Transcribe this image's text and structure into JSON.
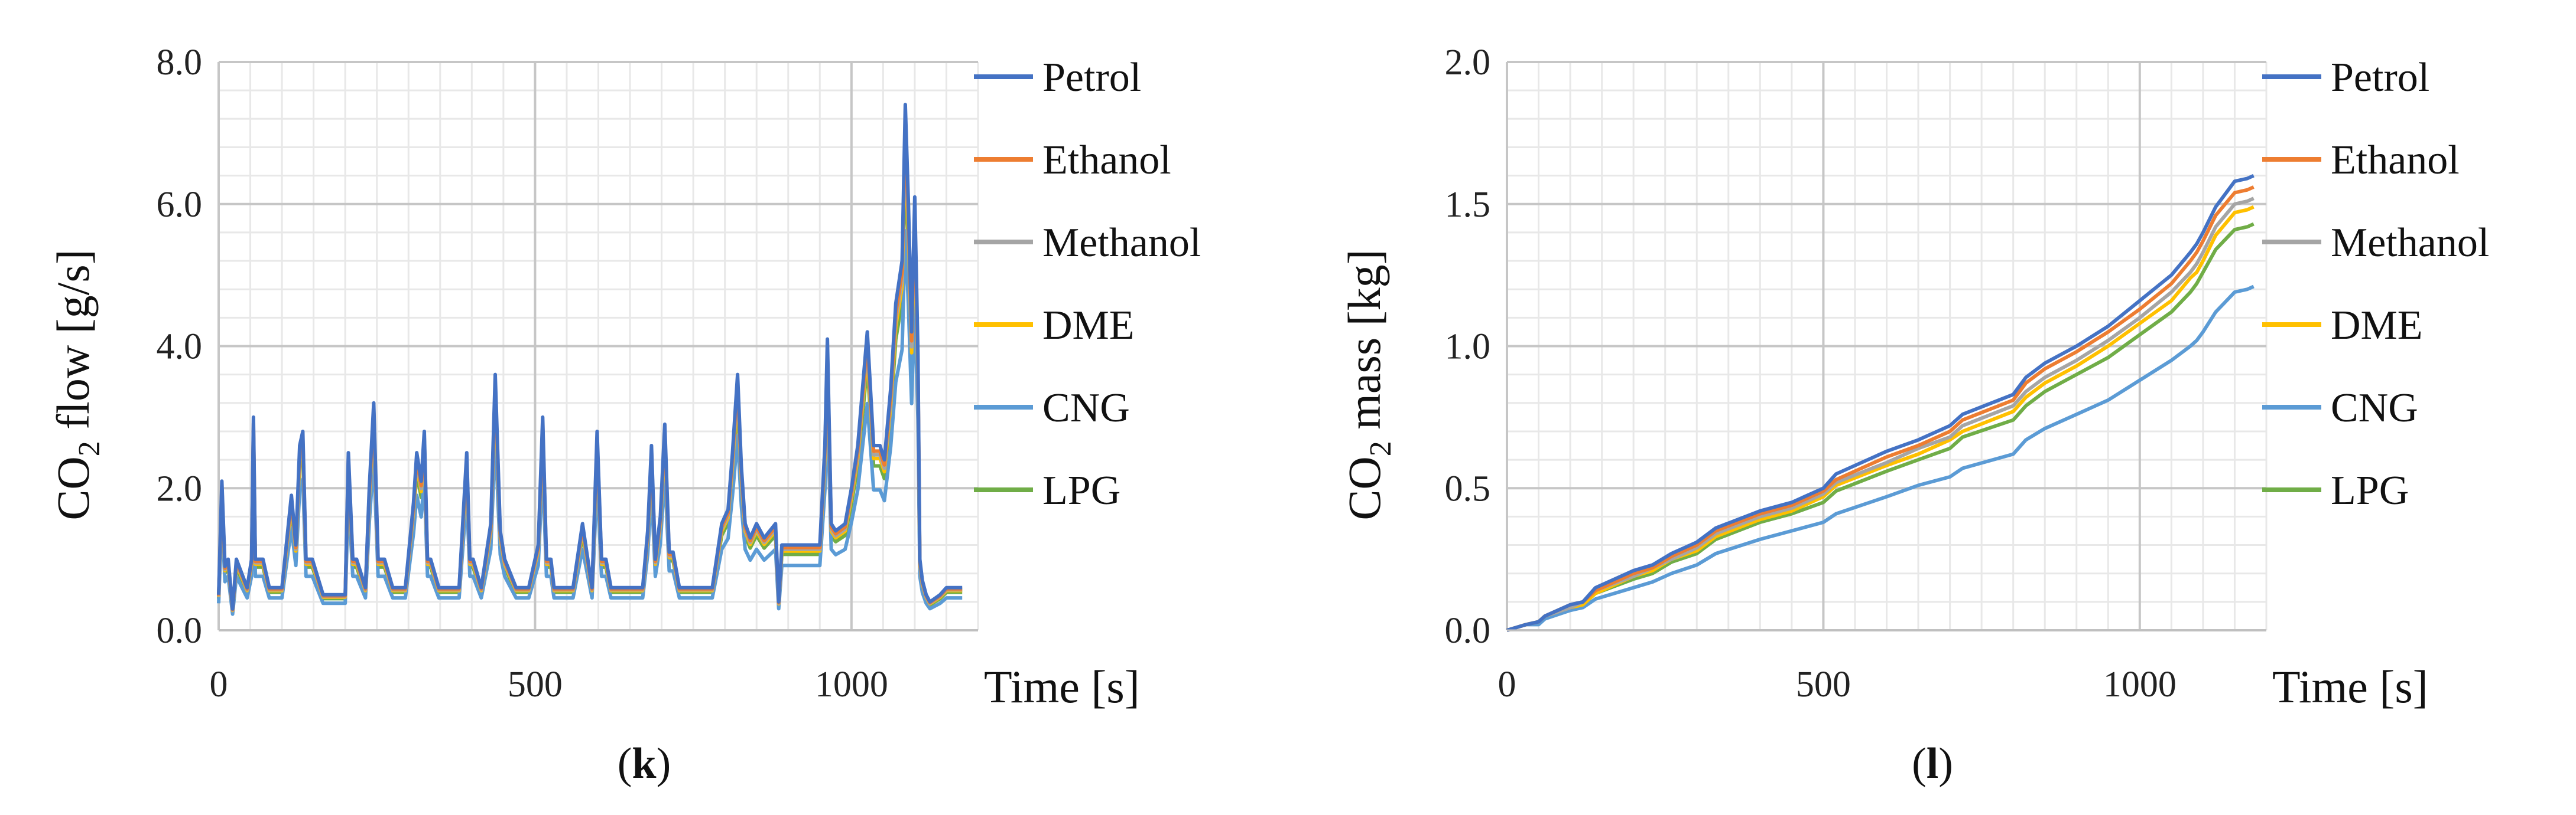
{
  "chart_data": [
    {
      "type": "line",
      "panel": "k",
      "panel_tag": {
        "open": "(",
        "letter": "k",
        "close": ")"
      },
      "xlabel": "Time [s]",
      "ylabel": {
        "pre": "CO",
        "sub": "2",
        "post": " flow [g/s]"
      },
      "xlim": [
        0,
        1200
      ],
      "ylim": [
        0,
        8
      ],
      "xticks": [
        "0",
        "500",
        "1000"
      ],
      "xtick_values": [
        0,
        500,
        1000
      ],
      "yticks": [
        "0.0",
        "2.0",
        "4.0",
        "6.0",
        "8.0"
      ],
      "ytick_values": [
        0,
        2,
        4,
        6,
        8
      ],
      "grid": true,
      "legend_position": "right",
      "base_profile": {
        "t": [
          0,
          5,
          10,
          15,
          22,
          28,
          45,
          52,
          55,
          58,
          62,
          70,
          80,
          100,
          115,
          122,
          128,
          133,
          138,
          148,
          165,
          180,
          200,
          205,
          212,
          218,
          232,
          238,
          245,
          252,
          262,
          275,
          295,
          308,
          313,
          320,
          325,
          330,
          335,
          348,
          360,
          380,
          392,
          397,
          402,
          415,
          430,
          437,
          445,
          452,
          470,
          490,
          505,
          512,
          518,
          525,
          530,
          540,
          560,
          575,
          590,
          598,
          605,
          612,
          620,
          640,
          660,
          670,
          678,
          684,
          690,
          698,
          705,
          712,
          718,
          728,
          745,
          760,
          780,
          795,
          805,
          812,
          820,
          826,
          832,
          840,
          850,
          862,
          880,
          885,
          890,
          900,
          920,
          940,
          950,
          958,
          962,
          968,
          975,
          990,
          1000,
          1010,
          1025,
          1035,
          1045,
          1052,
          1062,
          1070,
          1080,
          1085,
          1090,
          1095,
          1100,
          1105,
          1108,
          1112,
          1115,
          1118,
          1124,
          1140,
          1150,
          1155,
          1165,
          1175
        ],
        "y": [
          0.5,
          2.1,
          0.9,
          1.0,
          0.3,
          1.0,
          0.6,
          1.0,
          3.0,
          1.0,
          1.0,
          1.0,
          0.6,
          0.6,
          1.9,
          1.2,
          2.6,
          2.8,
          1.0,
          1.0,
          0.5,
          0.5,
          0.5,
          2.5,
          1.0,
          1.0,
          0.6,
          2.0,
          3.2,
          1.0,
          1.0,
          0.6,
          0.6,
          1.8,
          2.5,
          2.1,
          2.8,
          1.0,
          1.0,
          0.6,
          0.6,
          0.6,
          2.5,
          1.0,
          1.0,
          0.6,
          1.5,
          3.6,
          1.4,
          1.0,
          0.6,
          0.6,
          1.2,
          3.0,
          1.0,
          1.0,
          0.6,
          0.6,
          0.6,
          1.5,
          0.6,
          2.8,
          1.0,
          1.0,
          0.6,
          0.6,
          0.6,
          0.6,
          1.4,
          2.6,
          1.0,
          1.6,
          2.9,
          1.1,
          1.1,
          0.6,
          0.6,
          0.6,
          0.6,
          1.5,
          1.7,
          2.5,
          3.6,
          2.3,
          1.5,
          1.3,
          1.5,
          1.3,
          1.5,
          0.4,
          1.2,
          1.2,
          1.2,
          1.2,
          1.2,
          2.6,
          4.1,
          1.5,
          1.4,
          1.5,
          2.0,
          2.6,
          4.2,
          2.6,
          2.6,
          2.4,
          3.4,
          4.6,
          5.2,
          7.4,
          6.0,
          4.2,
          6.1,
          3.9,
          1.0,
          0.7,
          0.6,
          0.5,
          0.4,
          0.5,
          0.6,
          0.6,
          0.6,
          0.6
        ]
      },
      "series": [
        {
          "name": "Petrol",
          "scale": 1.0,
          "color": "#4472C4"
        },
        {
          "name": "Ethanol",
          "scale": 0.97,
          "color": "#ED7D31"
        },
        {
          "name": "Methanol",
          "scale": 0.95,
          "color": "#A5A5A5"
        },
        {
          "name": "DME",
          "scale": 0.93,
          "color": "#FFC000"
        },
        {
          "name": "CNG",
          "scale": 0.76,
          "color": "#5B9BD5"
        },
        {
          "name": "LPG",
          "scale": 0.89,
          "color": "#70AD47"
        }
      ]
    },
    {
      "type": "line",
      "panel": "l",
      "panel_tag": {
        "open": "(",
        "letter": "l",
        "close": ")"
      },
      "xlabel": "Time [s]",
      "ylabel": {
        "pre": "CO",
        "sub": "2",
        "post": " mass [kg]"
      },
      "xlim": [
        0,
        1200
      ],
      "ylim": [
        0,
        2
      ],
      "xticks": [
        "0",
        "500",
        "1000"
      ],
      "xtick_values": [
        0,
        500,
        1000
      ],
      "yticks": [
        "0.0",
        "0.5",
        "1.0",
        "1.5",
        "2.0"
      ],
      "ytick_values": [
        0,
        0.5,
        1.0,
        1.5,
        2.0
      ],
      "grid": true,
      "legend_position": "right",
      "x": [
        0,
        30,
        50,
        60,
        100,
        120,
        140,
        200,
        230,
        260,
        300,
        330,
        400,
        450,
        500,
        520,
        600,
        650,
        700,
        720,
        800,
        820,
        850,
        900,
        950,
        1000,
        1050,
        1080,
        1090,
        1100,
        1120,
        1150,
        1170,
        1180
      ],
      "series": [
        {
          "name": "Petrol",
          "color": "#4472C4",
          "values": [
            0.0,
            0.02,
            0.03,
            0.05,
            0.09,
            0.1,
            0.15,
            0.21,
            0.23,
            0.27,
            0.31,
            0.36,
            0.42,
            0.45,
            0.5,
            0.55,
            0.63,
            0.67,
            0.72,
            0.76,
            0.83,
            0.89,
            0.94,
            1.0,
            1.07,
            1.16,
            1.25,
            1.33,
            1.36,
            1.4,
            1.49,
            1.58,
            1.59,
            1.6
          ]
        },
        {
          "name": "Ethanol",
          "color": "#ED7D31",
          "values": [
            0.0,
            0.02,
            0.03,
            0.05,
            0.09,
            0.1,
            0.14,
            0.2,
            0.22,
            0.26,
            0.3,
            0.35,
            0.41,
            0.44,
            0.49,
            0.53,
            0.61,
            0.65,
            0.7,
            0.74,
            0.81,
            0.87,
            0.92,
            0.98,
            1.05,
            1.13,
            1.22,
            1.3,
            1.33,
            1.37,
            1.46,
            1.54,
            1.55,
            1.56
          ]
        },
        {
          "name": "Methanol",
          "color": "#A5A5A5",
          "values": [
            0.0,
            0.02,
            0.03,
            0.05,
            0.08,
            0.1,
            0.14,
            0.19,
            0.22,
            0.25,
            0.29,
            0.34,
            0.4,
            0.43,
            0.48,
            0.52,
            0.59,
            0.64,
            0.68,
            0.72,
            0.79,
            0.84,
            0.89,
            0.95,
            1.02,
            1.1,
            1.19,
            1.26,
            1.29,
            1.33,
            1.42,
            1.5,
            1.51,
            1.52
          ]
        },
        {
          "name": "DME",
          "color": "#FFC000",
          "values": [
            0.0,
            0.02,
            0.03,
            0.05,
            0.08,
            0.09,
            0.13,
            0.19,
            0.21,
            0.25,
            0.28,
            0.33,
            0.39,
            0.42,
            0.47,
            0.51,
            0.58,
            0.62,
            0.67,
            0.7,
            0.77,
            0.82,
            0.87,
            0.93,
            1.0,
            1.08,
            1.16,
            1.24,
            1.26,
            1.3,
            1.39,
            1.47,
            1.48,
            1.49
          ]
        },
        {
          "name": "CNG",
          "color": "#5B9BD5",
          "values": [
            0.0,
            0.02,
            0.02,
            0.04,
            0.07,
            0.08,
            0.11,
            0.15,
            0.17,
            0.2,
            0.23,
            0.27,
            0.32,
            0.35,
            0.38,
            0.41,
            0.47,
            0.51,
            0.54,
            0.57,
            0.62,
            0.67,
            0.71,
            0.76,
            0.81,
            0.88,
            0.95,
            1.0,
            1.02,
            1.05,
            1.12,
            1.19,
            1.2,
            1.21
          ]
        },
        {
          "name": "LPG",
          "color": "#70AD47",
          "values": [
            0.0,
            0.02,
            0.03,
            0.05,
            0.08,
            0.09,
            0.13,
            0.18,
            0.2,
            0.24,
            0.27,
            0.32,
            0.38,
            0.41,
            0.45,
            0.49,
            0.56,
            0.6,
            0.64,
            0.68,
            0.74,
            0.79,
            0.84,
            0.9,
            0.96,
            1.04,
            1.12,
            1.19,
            1.22,
            1.26,
            1.34,
            1.41,
            1.42,
            1.43
          ]
        }
      ]
    }
  ]
}
